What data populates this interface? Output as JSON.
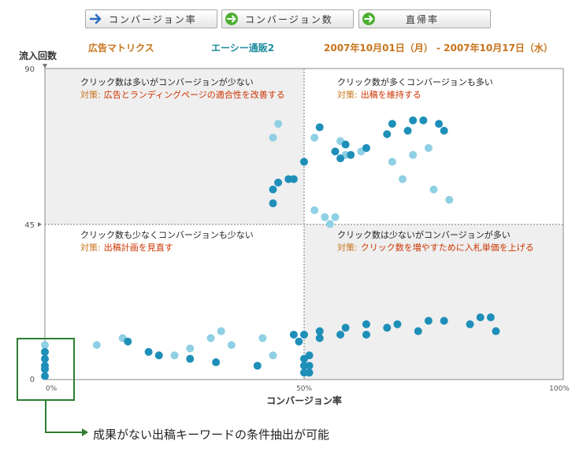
{
  "toolbar": {
    "buttons": [
      {
        "label": "コンバージョン率",
        "icon": "arrow-right-icon",
        "icon_color": "#2a6cc4"
      },
      {
        "label": "コンバージョン数",
        "icon": "arrow-right-circle-icon",
        "icon_color": "#4caf32"
      },
      {
        "label": "直帰率",
        "icon": "arrow-right-circle-icon",
        "icon_color": "#4caf32"
      }
    ]
  },
  "header": {
    "report_name": "広告マトリクス",
    "account": "エーシー通販2",
    "date_range": "2007年10月01日（月） - 2007年10月17日（水）"
  },
  "colors": {
    "point_dark": "#1e8fb8",
    "point_light": "#8fd0e4",
    "quadrant_shade": "#efefef",
    "orange_text": "#c8741a",
    "red_text": "#cc3300",
    "teal_text": "#1b8c9e",
    "highlight_box": "#2e7d32"
  },
  "chart_data": {
    "type": "scatter",
    "xlabel": "コンバージョン率",
    "ylabel": "流入回数",
    "xlim": [
      0,
      100
    ],
    "ylim": [
      0,
      90
    ],
    "x_ticks": [
      "0%",
      "50%",
      "100%"
    ],
    "y_ticks": [
      "0",
      "45",
      "90"
    ],
    "grid": "dividers at x=50, y=45",
    "quadrants": [
      {
        "position": "top-left",
        "title": "クリック数は多いがコンバージョンが少ない",
        "action_prefix": "対策:",
        "action": "広告とランディングページの適合性を改善する",
        "shaded": true
      },
      {
        "position": "top-right",
        "title": "クリック数が多くコンバージョンも多い",
        "action_prefix": "対策:",
        "action": "出稿を維持する",
        "shaded": false
      },
      {
        "position": "bottom-left",
        "title": "クリック数も少なくコンバージョンも少ない",
        "action_prefix": "対策:",
        "action": "出稿計画を見直す",
        "shaded": false
      },
      {
        "position": "bottom-right",
        "title": "クリック数は少ないがコンバージョンが多い",
        "action_prefix": "対策:",
        "action": "クリック数を増やすために入札単価を上げる",
        "shaded": true
      }
    ],
    "points_dark": [
      [
        44,
        51
      ],
      [
        44,
        55
      ],
      [
        45,
        57
      ],
      [
        47,
        58
      ],
      [
        48,
        58
      ],
      [
        50,
        63
      ],
      [
        53,
        73
      ],
      [
        57,
        64
      ],
      [
        56,
        66
      ],
      [
        59,
        65
      ],
      [
        58,
        68
      ],
      [
        62,
        67
      ],
      [
        66,
        71
      ],
      [
        67,
        74
      ],
      [
        70,
        72
      ],
      [
        71,
        75
      ],
      [
        73,
        75
      ],
      [
        76,
        74
      ],
      [
        77,
        72
      ],
      [
        62,
        13
      ],
      [
        57,
        13
      ],
      [
        48,
        13
      ],
      [
        49,
        11
      ],
      [
        50,
        13
      ],
      [
        53,
        14
      ],
      [
        53,
        12
      ],
      [
        58,
        15
      ],
      [
        62,
        16
      ],
      [
        66,
        15
      ],
      [
        72,
        14
      ],
      [
        68,
        16
      ],
      [
        74,
        17
      ],
      [
        77,
        17
      ],
      [
        84,
        18
      ],
      [
        86,
        18
      ],
      [
        87,
        14
      ],
      [
        82,
        16
      ],
      [
        0,
        8
      ],
      [
        0,
        6
      ],
      [
        0,
        4
      ],
      [
        0,
        3
      ],
      [
        0,
        1
      ],
      [
        50,
        6
      ],
      [
        50,
        4
      ],
      [
        50,
        2
      ],
      [
        16,
        11
      ],
      [
        20,
        8
      ],
      [
        22,
        7
      ],
      [
        28,
        6
      ],
      [
        33,
        5
      ],
      [
        41,
        4
      ],
      [
        51,
        7
      ],
      [
        51,
        4
      ],
      [
        51,
        2
      ]
    ],
    "points_light": [
      [
        45,
        74
      ],
      [
        44,
        70
      ],
      [
        52,
        70
      ],
      [
        57,
        69
      ],
      [
        58,
        65
      ],
      [
        61,
        66
      ],
      [
        67,
        63
      ],
      [
        69,
        58
      ],
      [
        71,
        65
      ],
      [
        74,
        67
      ],
      [
        75,
        55
      ],
      [
        78,
        52
      ],
      [
        52,
        49
      ],
      [
        54,
        47
      ],
      [
        55,
        45
      ],
      [
        56,
        47
      ],
      [
        0,
        10
      ],
      [
        10,
        10
      ],
      [
        15,
        12
      ],
      [
        25,
        7
      ],
      [
        28,
        9
      ],
      [
        32,
        12
      ],
      [
        34,
        14
      ],
      [
        36,
        10
      ],
      [
        42,
        12
      ],
      [
        44,
        7
      ]
    ],
    "highlight_note": "成果がない出稿キーワードの条件抽出が可能"
  }
}
